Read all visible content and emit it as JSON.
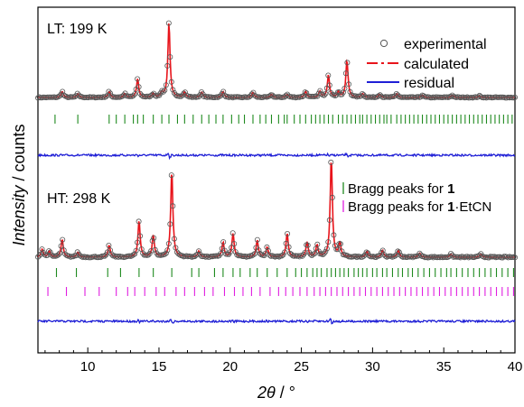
{
  "chart_data": {
    "type": "line",
    "xlabel_main": "2θ",
    "xlabel_unit": " / °",
    "ylabel_main": "Intensity",
    "ylabel_unit": " / counts",
    "xlim": [
      6.5,
      40
    ],
    "xticks": [
      10,
      15,
      20,
      25,
      30,
      35,
      40
    ],
    "legend": {
      "experimental": "experimental",
      "calculated": "calculated",
      "residual": "residual"
    },
    "bragg_legend": {
      "green_prefix": "Bragg peaks for ",
      "green_bold": "1",
      "magenta_prefix": "Bragg peaks for ",
      "magenta_bold": "1",
      "magenta_suffix": "·EtCN"
    },
    "colors": {
      "experimental": "#555555",
      "calculated": "#e8141b",
      "residual": "#1f1fd6",
      "bragg_green": "#1f8a1f",
      "bragg_magenta": "#e01ee0"
    },
    "panels": [
      {
        "label": "LT: 199 K",
        "peaks": [
          {
            "x": 8.2,
            "h": 0.08
          },
          {
            "x": 9.3,
            "h": 0.05
          },
          {
            "x": 11.5,
            "h": 0.08
          },
          {
            "x": 12.6,
            "h": 0.05
          },
          {
            "x": 13.5,
            "h": 0.25
          },
          {
            "x": 14.6,
            "h": 0.05
          },
          {
            "x": 15.2,
            "h": 0.06
          },
          {
            "x": 15.7,
            "h": 1.0
          },
          {
            "x": 16.8,
            "h": 0.07
          },
          {
            "x": 18.0,
            "h": 0.07
          },
          {
            "x": 19.5,
            "h": 0.08
          },
          {
            "x": 21.6,
            "h": 0.07
          },
          {
            "x": 22.9,
            "h": 0.04
          },
          {
            "x": 24.0,
            "h": 0.04
          },
          {
            "x": 25.3,
            "h": 0.08
          },
          {
            "x": 26.3,
            "h": 0.08
          },
          {
            "x": 26.9,
            "h": 0.3
          },
          {
            "x": 27.6,
            "h": 0.07
          },
          {
            "x": 28.2,
            "h": 0.5
          },
          {
            "x": 29.3,
            "h": 0.05
          },
          {
            "x": 30.5,
            "h": 0.04
          },
          {
            "x": 31.7,
            "h": 0.05
          },
          {
            "x": 33.5,
            "h": 0.03
          },
          {
            "x": 35.6,
            "h": 0.03
          },
          {
            "x": 37.5,
            "h": 0.02
          }
        ],
        "bragg": [
          {
            "name": "1",
            "ticks": [
              7.7,
              9.3,
              11.5,
              12.0,
              12.6,
              13.2,
              13.5,
              13.9,
              14.6,
              15.2,
              15.7,
              16.3,
              16.8,
              17.4,
              18.0,
              18.5,
              19.0,
              19.5,
              20.1,
              20.6,
              21.0,
              21.6,
              22.1,
              22.5,
              22.9,
              23.4,
              23.8,
              24.0,
              24.5,
              24.9,
              25.3,
              25.7,
              26.0,
              26.3,
              26.6,
              26.9,
              27.2,
              27.6,
              27.9,
              28.2,
              28.5,
              28.8,
              29.1,
              29.3,
              29.6,
              29.9,
              30.2,
              30.5,
              30.8,
              31.0,
              31.3,
              31.7,
              32.0,
              32.3,
              32.6,
              32.9,
              33.2,
              33.5,
              33.8,
              34.1,
              34.4,
              34.7,
              35.0,
              35.3,
              35.6,
              35.9,
              36.2,
              36.5,
              36.8,
              37.1,
              37.4,
              37.7,
              38.0,
              38.3,
              38.6,
              38.9,
              39.2,
              39.5,
              39.8
            ]
          }
        ]
      },
      {
        "label": "HT: 298 K",
        "peaks": [
          {
            "x": 6.8,
            "h": 0.08
          },
          {
            "x": 7.3,
            "h": 0.06
          },
          {
            "x": 8.2,
            "h": 0.18
          },
          {
            "x": 9.3,
            "h": 0.05
          },
          {
            "x": 11.5,
            "h": 0.12
          },
          {
            "x": 13.6,
            "h": 0.37
          },
          {
            "x": 14.6,
            "h": 0.22
          },
          {
            "x": 15.9,
            "h": 0.87
          },
          {
            "x": 17.8,
            "h": 0.06
          },
          {
            "x": 19.5,
            "h": 0.15
          },
          {
            "x": 20.2,
            "h": 0.24
          },
          {
            "x": 21.9,
            "h": 0.17
          },
          {
            "x": 22.6,
            "h": 0.1
          },
          {
            "x": 24.0,
            "h": 0.24
          },
          {
            "x": 25.4,
            "h": 0.15
          },
          {
            "x": 26.1,
            "h": 0.12
          },
          {
            "x": 27.1,
            "h": 1.0
          },
          {
            "x": 27.7,
            "h": 0.14
          },
          {
            "x": 29.6,
            "h": 0.06
          },
          {
            "x": 30.7,
            "h": 0.07
          },
          {
            "x": 31.8,
            "h": 0.07
          },
          {
            "x": 33.3,
            "h": 0.04
          },
          {
            "x": 35.5,
            "h": 0.03
          },
          {
            "x": 37.6,
            "h": 0.03
          }
        ],
        "bragg": [
          {
            "name": "1",
            "ticks": [
              7.8,
              9.2,
              11.4,
              12.3,
              13.6,
              14.6,
              15.9,
              17.3,
              17.8,
              18.9,
              19.5,
              20.2,
              20.7,
              21.4,
              21.9,
              22.6,
              23.3,
              24.0,
              24.6,
              25.0,
              25.4,
              25.8,
              26.1,
              26.4,
              26.8,
              27.1,
              27.4,
              27.7,
              28.0,
              28.3,
              28.7,
              29.0,
              29.3,
              29.6,
              30.0,
              30.3,
              30.7,
              31.0,
              31.4,
              31.8,
              32.1,
              32.5,
              32.8,
              33.2,
              33.6,
              34.0,
              34.4,
              34.8,
              35.2,
              35.5,
              35.9,
              36.3,
              36.7,
              37.1,
              37.5,
              37.9,
              38.3,
              38.7,
              39.1,
              39.5,
              39.9
            ]
          },
          {
            "name": "1·EtCN",
            "ticks": [
              7.2,
              8.5,
              9.8,
              10.8,
              12.0,
              12.8,
              13.3,
              14.0,
              14.8,
              15.4,
              16.2,
              16.8,
              17.5,
              18.2,
              18.8,
              19.6,
              20.3,
              20.9,
              21.5,
              22.1,
              22.8,
              23.4,
              23.9,
              24.4,
              24.9,
              25.4,
              25.9,
              26.3,
              26.7,
              27.1,
              27.5,
              27.9,
              28.3,
              28.7,
              29.1,
              29.5,
              29.9,
              30.3,
              30.7,
              31.1,
              31.5,
              31.9,
              32.3,
              32.7,
              33.1,
              33.5,
              33.9,
              34.3,
              34.7,
              35.1,
              35.5,
              35.9,
              36.3,
              36.7,
              37.1,
              37.5,
              37.9,
              38.3,
              38.7,
              39.1,
              39.5,
              39.9
            ]
          }
        ]
      }
    ]
  }
}
